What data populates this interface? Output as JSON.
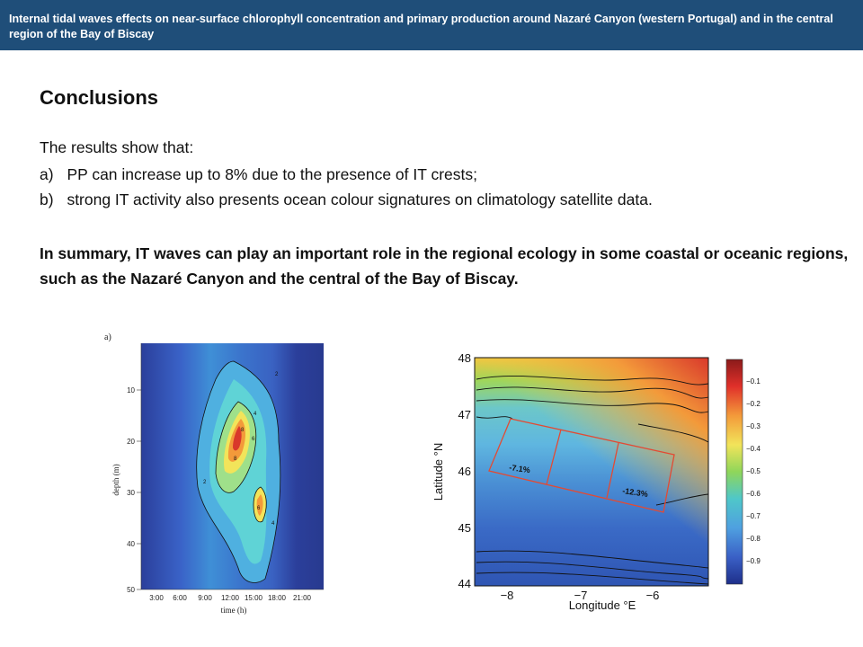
{
  "header": {
    "title": "Internal tidal waves effects on near-surface chlorophyll concentration and primary production around Nazaré Canyon (western Portugal) and in the central region of the Bay of Biscay"
  },
  "conclusions": {
    "heading": "Conclusions",
    "intro": "The results show that:",
    "points": [
      {
        "marker": "a)",
        "text": "PP can increase up to 8% due to the presence of IT crests;"
      },
      {
        "marker": "b)",
        "text": " strong IT activity also presents ocean colour signatures on climatology satellite data."
      }
    ],
    "summary": "In summary, IT waves can play an important role in the regional ecology in some coastal or oceanic regions, such as the Nazaré Canyon and the central of the Bay of Biscay."
  },
  "figure_a": {
    "panel_label": "a)",
    "ylabel": "depth (m)",
    "xlabel": "time (h)",
    "y_ticks": [
      "10",
      "20",
      "30",
      "40",
      "50"
    ],
    "x_ticks": [
      "3:00",
      "6:00",
      "9:00",
      "12:00",
      "15:00",
      "18:00",
      "21:00"
    ],
    "contour_labels": [
      "2",
      "4",
      "6",
      "8",
      "8",
      "6",
      "4",
      "2"
    ]
  },
  "figure_b": {
    "ylabel": "Latitude °N",
    "xlabel": "Longitude °E",
    "y_ticks": [
      "48",
      "47",
      "46",
      "45",
      "44"
    ],
    "x_ticks": [
      "−8",
      "−7",
      "−6"
    ],
    "colorbar_ticks": [
      "−0.1",
      "−0.2",
      "−0.3",
      "−0.4",
      "−0.5",
      "−0.6",
      "−0.7",
      "−0.8",
      "−0.9"
    ],
    "annotations": [
      "-7.1%",
      "-12.3%"
    ]
  },
  "colors": {
    "title_bar": "#1f4e79",
    "box_outline": "#e34a33"
  }
}
